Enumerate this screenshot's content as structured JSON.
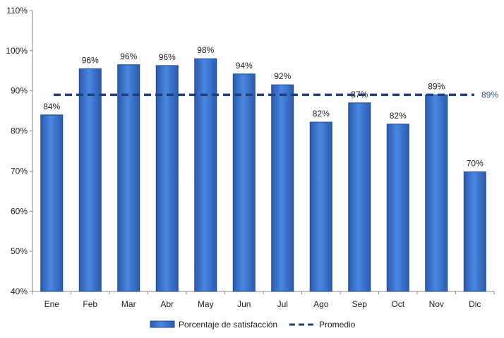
{
  "chart_data": {
    "type": "bar",
    "categories": [
      "Ene",
      "Feb",
      "Mar",
      "Abr",
      "May",
      "Jun",
      "Jul",
      "Ago",
      "Sep",
      "Oct",
      "Nov",
      "Dic"
    ],
    "series": [
      {
        "name": "Porcentaje de satisfacción",
        "values": [
          84,
          95.5,
          96.5,
          96.3,
          98,
          94.2,
          91.5,
          82.2,
          87,
          81.7,
          89,
          69.8
        ],
        "labels": [
          "84%",
          "96%",
          "96%",
          "96%",
          "98%",
          "94%",
          "92%",
          "82%",
          "87%",
          "82%",
          "89%",
          "70%"
        ],
        "color": "#3a75d4"
      },
      {
        "name": "Promedio",
        "type": "line",
        "style": "dashed",
        "value": 89,
        "label": "89%",
        "color": "#1f3f7a"
      }
    ],
    "ylim": [
      40,
      110
    ],
    "yticks": [
      "40%",
      "50%",
      "60%",
      "70%",
      "80%",
      "90%",
      "100%",
      "110%"
    ],
    "ytick_values": [
      40,
      50,
      60,
      70,
      80,
      90,
      100,
      110
    ],
    "grid": false,
    "legend": "bottom"
  }
}
